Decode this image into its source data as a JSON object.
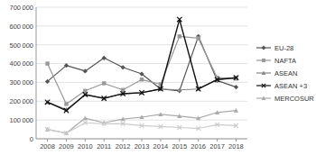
{
  "chart_data": {
    "type": "line",
    "x": [
      2008,
      2009,
      2010,
      2011,
      2012,
      2013,
      2014,
      2015,
      2016,
      2017,
      2018
    ],
    "xlim": [
      2007.4,
      2018.6
    ],
    "xticks": [
      2008,
      2009,
      2010,
      2011,
      2012,
      2013,
      2014,
      2015,
      2016,
      2017,
      2018
    ],
    "ylim": [
      0,
      700000
    ],
    "yticks": [
      0,
      {
        "value": 100000,
        "label": "100 000"
      },
      {
        "value": 200000,
        "label": "200 000"
      },
      {
        "value": 300000,
        "label": "300 000"
      },
      {
        "value": 400000,
        "label": "400 000"
      },
      {
        "value": 500000,
        "label": "500 000"
      },
      {
        "value": 600000,
        "label": "600 000"
      },
      {
        "value": 700000,
        "label": "700 000"
      }
    ],
    "grid": true,
    "legend": "right",
    "series": [
      {
        "name": "EU-28",
        "color": "#555555",
        "marker": "diamond",
        "values": [
          305000,
          390000,
          360000,
          430000,
          380000,
          345000,
          265000,
          255000,
          545000,
          310000,
          275000
        ]
      },
      {
        "name": "NAFTA",
        "color": "#999999",
        "marker": "square",
        "values": [
          400000,
          185000,
          255000,
          295000,
          260000,
          315000,
          290000,
          545000,
          535000,
          325000,
          320000
        ]
      },
      {
        "name": "ASEAN",
        "color": "#888888",
        "marker": "triangle",
        "values": [
          195000,
          155000,
          235000,
          215000,
          240000,
          245000,
          265000,
          260000,
          265000,
          315000,
          325000
        ]
      },
      {
        "name": "ASEAN +3",
        "color": "#111111",
        "marker": "x",
        "values": [
          195000,
          150000,
          235000,
          215000,
          240000,
          245000,
          265000,
          635000,
          265000,
          315000,
          325000
        ]
      },
      {
        "name": "MERCOSUR",
        "color": "#aaaaaa",
        "marker": "triangle",
        "values": [
          50000,
          30000,
          110000,
          85000,
          105000,
          115000,
          130000,
          120000,
          110000,
          140000,
          150000
        ]
      },
      {
        "color": "#cccccc",
        "marker": "x",
        "values": [
          50000,
          30000,
          85000,
          80000,
          80000,
          70000,
          65000,
          60000,
          55000,
          75000,
          70000
        ]
      }
    ]
  }
}
